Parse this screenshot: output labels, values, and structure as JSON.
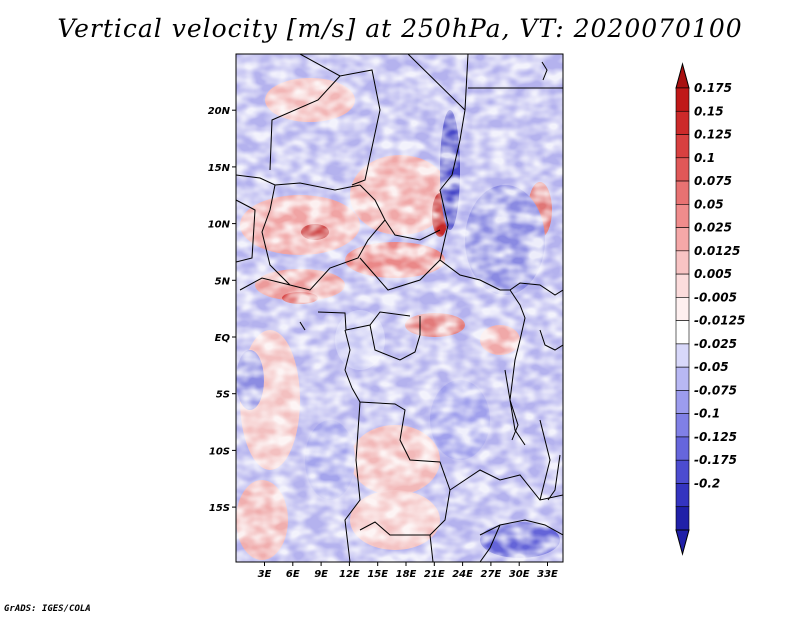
{
  "title": "Vertical velocity [m/s] at 250hPa, VT: 2020070100",
  "credit": "GrADS: IGES/COLA",
  "map": {
    "lon_range": [
      0,
      35
    ],
    "lat_range": [
      -20,
      24
    ],
    "lon_ticks": [
      {
        "value": 3,
        "label": "3E"
      },
      {
        "value": 6,
        "label": "6E"
      },
      {
        "value": 9,
        "label": "9E"
      },
      {
        "value": 12,
        "label": "12E"
      },
      {
        "value": 15,
        "label": "15E"
      },
      {
        "value": 18,
        "label": "18E"
      },
      {
        "value": 21,
        "label": "21E"
      },
      {
        "value": 24,
        "label": "24E"
      },
      {
        "value": 27,
        "label": "27E"
      },
      {
        "value": 30,
        "label": "30E"
      },
      {
        "value": 33,
        "label": "33E"
      }
    ],
    "lat_ticks": [
      {
        "value": 20,
        "label": "20N"
      },
      {
        "value": 15,
        "label": "15N"
      },
      {
        "value": 10,
        "label": "10N"
      },
      {
        "value": 5,
        "label": "5N"
      },
      {
        "value": 0,
        "label": "EQ"
      },
      {
        "value": -5,
        "label": "5S"
      },
      {
        "value": -10,
        "label": "10S"
      },
      {
        "value": -15,
        "label": "15S"
      }
    ]
  },
  "colorbar": {
    "levels": [
      {
        "label": "0.175",
        "color": "#c01818"
      },
      {
        "label": "0.15",
        "color": "#cc2a2a"
      },
      {
        "label": "0.125",
        "color": "#d84040"
      },
      {
        "label": "0.1",
        "color": "#e05858"
      },
      {
        "label": "0.075",
        "color": "#e87272"
      },
      {
        "label": "0.05",
        "color": "#f08c8c"
      },
      {
        "label": "0.025",
        "color": "#f5a8a8"
      },
      {
        "label": "0.0125",
        "color": "#f8c4c4"
      },
      {
        "label": "0.005",
        "color": "#fcdcdc"
      },
      {
        "label": "-0.005",
        "color": "#fef0f0"
      },
      {
        "label": "-0.0125",
        "color": "#ffffff"
      },
      {
        "label": "-0.025",
        "color": "#d8d8fa"
      },
      {
        "label": "-0.05",
        "color": "#b8b8f4"
      },
      {
        "label": "-0.075",
        "color": "#9c9cee"
      },
      {
        "label": "-0.1",
        "color": "#8080e6"
      },
      {
        "label": "-0.125",
        "color": "#6666dc"
      },
      {
        "label": "-0.175",
        "color": "#4c4cd0"
      },
      {
        "label": "-0.2",
        "color": "#3434c0"
      }
    ],
    "top_arrow_color": "#a81010",
    "bottom_arrow_color": "#2020a8"
  }
}
